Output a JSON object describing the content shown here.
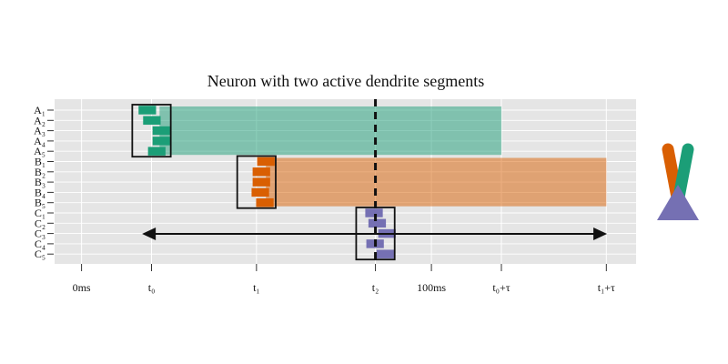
{
  "chart_data": {
    "type": "bar",
    "title": "Neuron with two active dendrite segments",
    "xlim": [
      -7.7,
      158.5
    ],
    "x_ticks": [
      {
        "value": 0,
        "label": "0ms"
      },
      {
        "value": 20,
        "label": "t₀"
      },
      {
        "value": 50,
        "label": "t₁"
      },
      {
        "value": 84,
        "label": "t₂"
      },
      {
        "value": 100,
        "label": "100ms"
      },
      {
        "value": 120,
        "label": "t₀+τ"
      },
      {
        "value": 150,
        "label": "t₁+τ"
      }
    ],
    "rows": [
      "A₁",
      "A₂",
      "A₃",
      "A₄",
      "A₅",
      "B₁",
      "B₂",
      "B₃",
      "B₄",
      "B₅",
      "C₁",
      "C₂",
      "C₃",
      "C₄",
      "C₅"
    ],
    "spike_width": 5,
    "series": [
      {
        "name": "A",
        "color": "#1b9e77",
        "starts": [
          16.3,
          17.6,
          20.3,
          20.3,
          19.0
        ]
      },
      {
        "name": "B",
        "color": "#d95f02",
        "starts": [
          50.2,
          48.9,
          48.9,
          48.6,
          49.9
        ]
      },
      {
        "name": "C",
        "color": "#7570b3",
        "starts": [
          81.1,
          82.0,
          84.8,
          81.4,
          84.3
        ]
      }
    ],
    "active_windows": [
      {
        "series": "A",
        "start": 22.3,
        "end": 120,
        "color": "#1b9e77"
      },
      {
        "series": "B",
        "start": 52.7,
        "end": 150,
        "color": "#d95f02"
      }
    ],
    "groups": [
      {
        "series": "A",
        "start": 14.5,
        "end": 25.5
      },
      {
        "series": "B",
        "start": 44.5,
        "end": 55.5
      },
      {
        "series": "C",
        "start": 78.5,
        "end": 89.5
      }
    ],
    "dashed_line_x": 84,
    "arrow": {
      "from": 17.3,
      "to": 150.2
    },
    "icon_colors": {
      "left_dendrite": "#d95f02",
      "right_dendrite": "#1b9e77",
      "soma": "#7570b3"
    },
    "background": "#e5e5e5",
    "grid": true
  }
}
